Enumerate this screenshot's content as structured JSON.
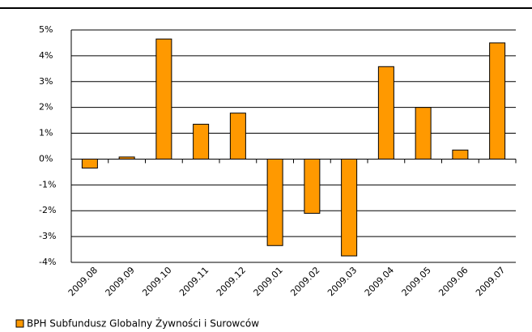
{
  "chart_data": {
    "type": "bar",
    "categories": [
      "2009.08",
      "2009.09",
      "2009.10",
      "2009.11",
      "2009.12",
      "2009.01",
      "2009.02",
      "2009.03",
      "2009.04",
      "2009.05",
      "2009.06",
      "2009.07"
    ],
    "series": [
      {
        "name": "BPH Subfundusz Globalny Żywności i Surowców",
        "color": "#ff9900",
        "values": [
          -0.35,
          0.08,
          4.65,
          1.35,
          1.78,
          -3.35,
          -2.1,
          -3.75,
          3.58,
          2.0,
          0.35,
          4.5
        ]
      }
    ],
    "ylim": [
      -4,
      5
    ],
    "yticks": [
      {
        "value": -4,
        "label": "-4%"
      },
      {
        "value": -3,
        "label": "-3%"
      },
      {
        "value": -2,
        "label": "-2%"
      },
      {
        "value": -1,
        "label": "-1%"
      },
      {
        "value": 0,
        "label": "0%"
      },
      {
        "value": 1,
        "label": "1%"
      },
      {
        "value": 2,
        "label": "2%"
      },
      {
        "value": 3,
        "label": "3%"
      },
      {
        "value": 4,
        "label": "4%"
      },
      {
        "value": 5,
        "label": "5%"
      }
    ],
    "grid": true
  }
}
